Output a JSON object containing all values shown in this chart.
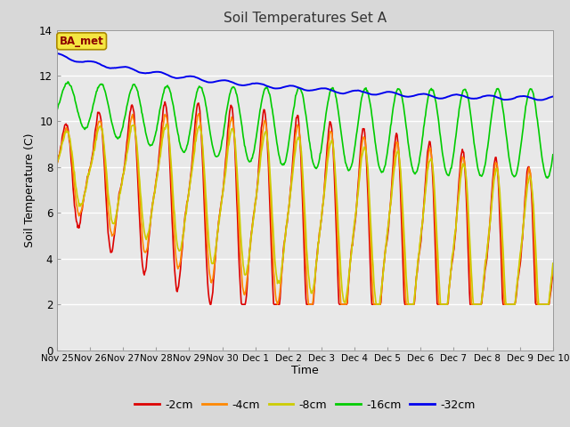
{
  "title": "Soil Temperatures Set A",
  "xlabel": "Time",
  "ylabel": "Soil Temperature (C)",
  "ylim": [
    0,
    14
  ],
  "fig_bg_color": "#d8d8d8",
  "plot_bg_color": "#e8e8e8",
  "legend_label": "BA_met",
  "series_labels": [
    "-2cm",
    "-4cm",
    "-8cm",
    "-16cm",
    "-32cm"
  ],
  "series_colors": [
    "#dd0000",
    "#ff8800",
    "#cccc00",
    "#00cc00",
    "#0000ee"
  ],
  "x_tick_labels": [
    "Nov 25",
    "Nov 26",
    "Nov 27",
    "Nov 28",
    "Nov 29",
    "Nov 30",
    "Dec 1",
    "Dec 2",
    "Dec 3",
    "Dec 4",
    "Dec 5",
    "Dec 6",
    "Dec 7",
    "Dec 8",
    "Dec 9",
    "Dec 10"
  ],
  "n_days": 16,
  "pts_per_day": 48
}
